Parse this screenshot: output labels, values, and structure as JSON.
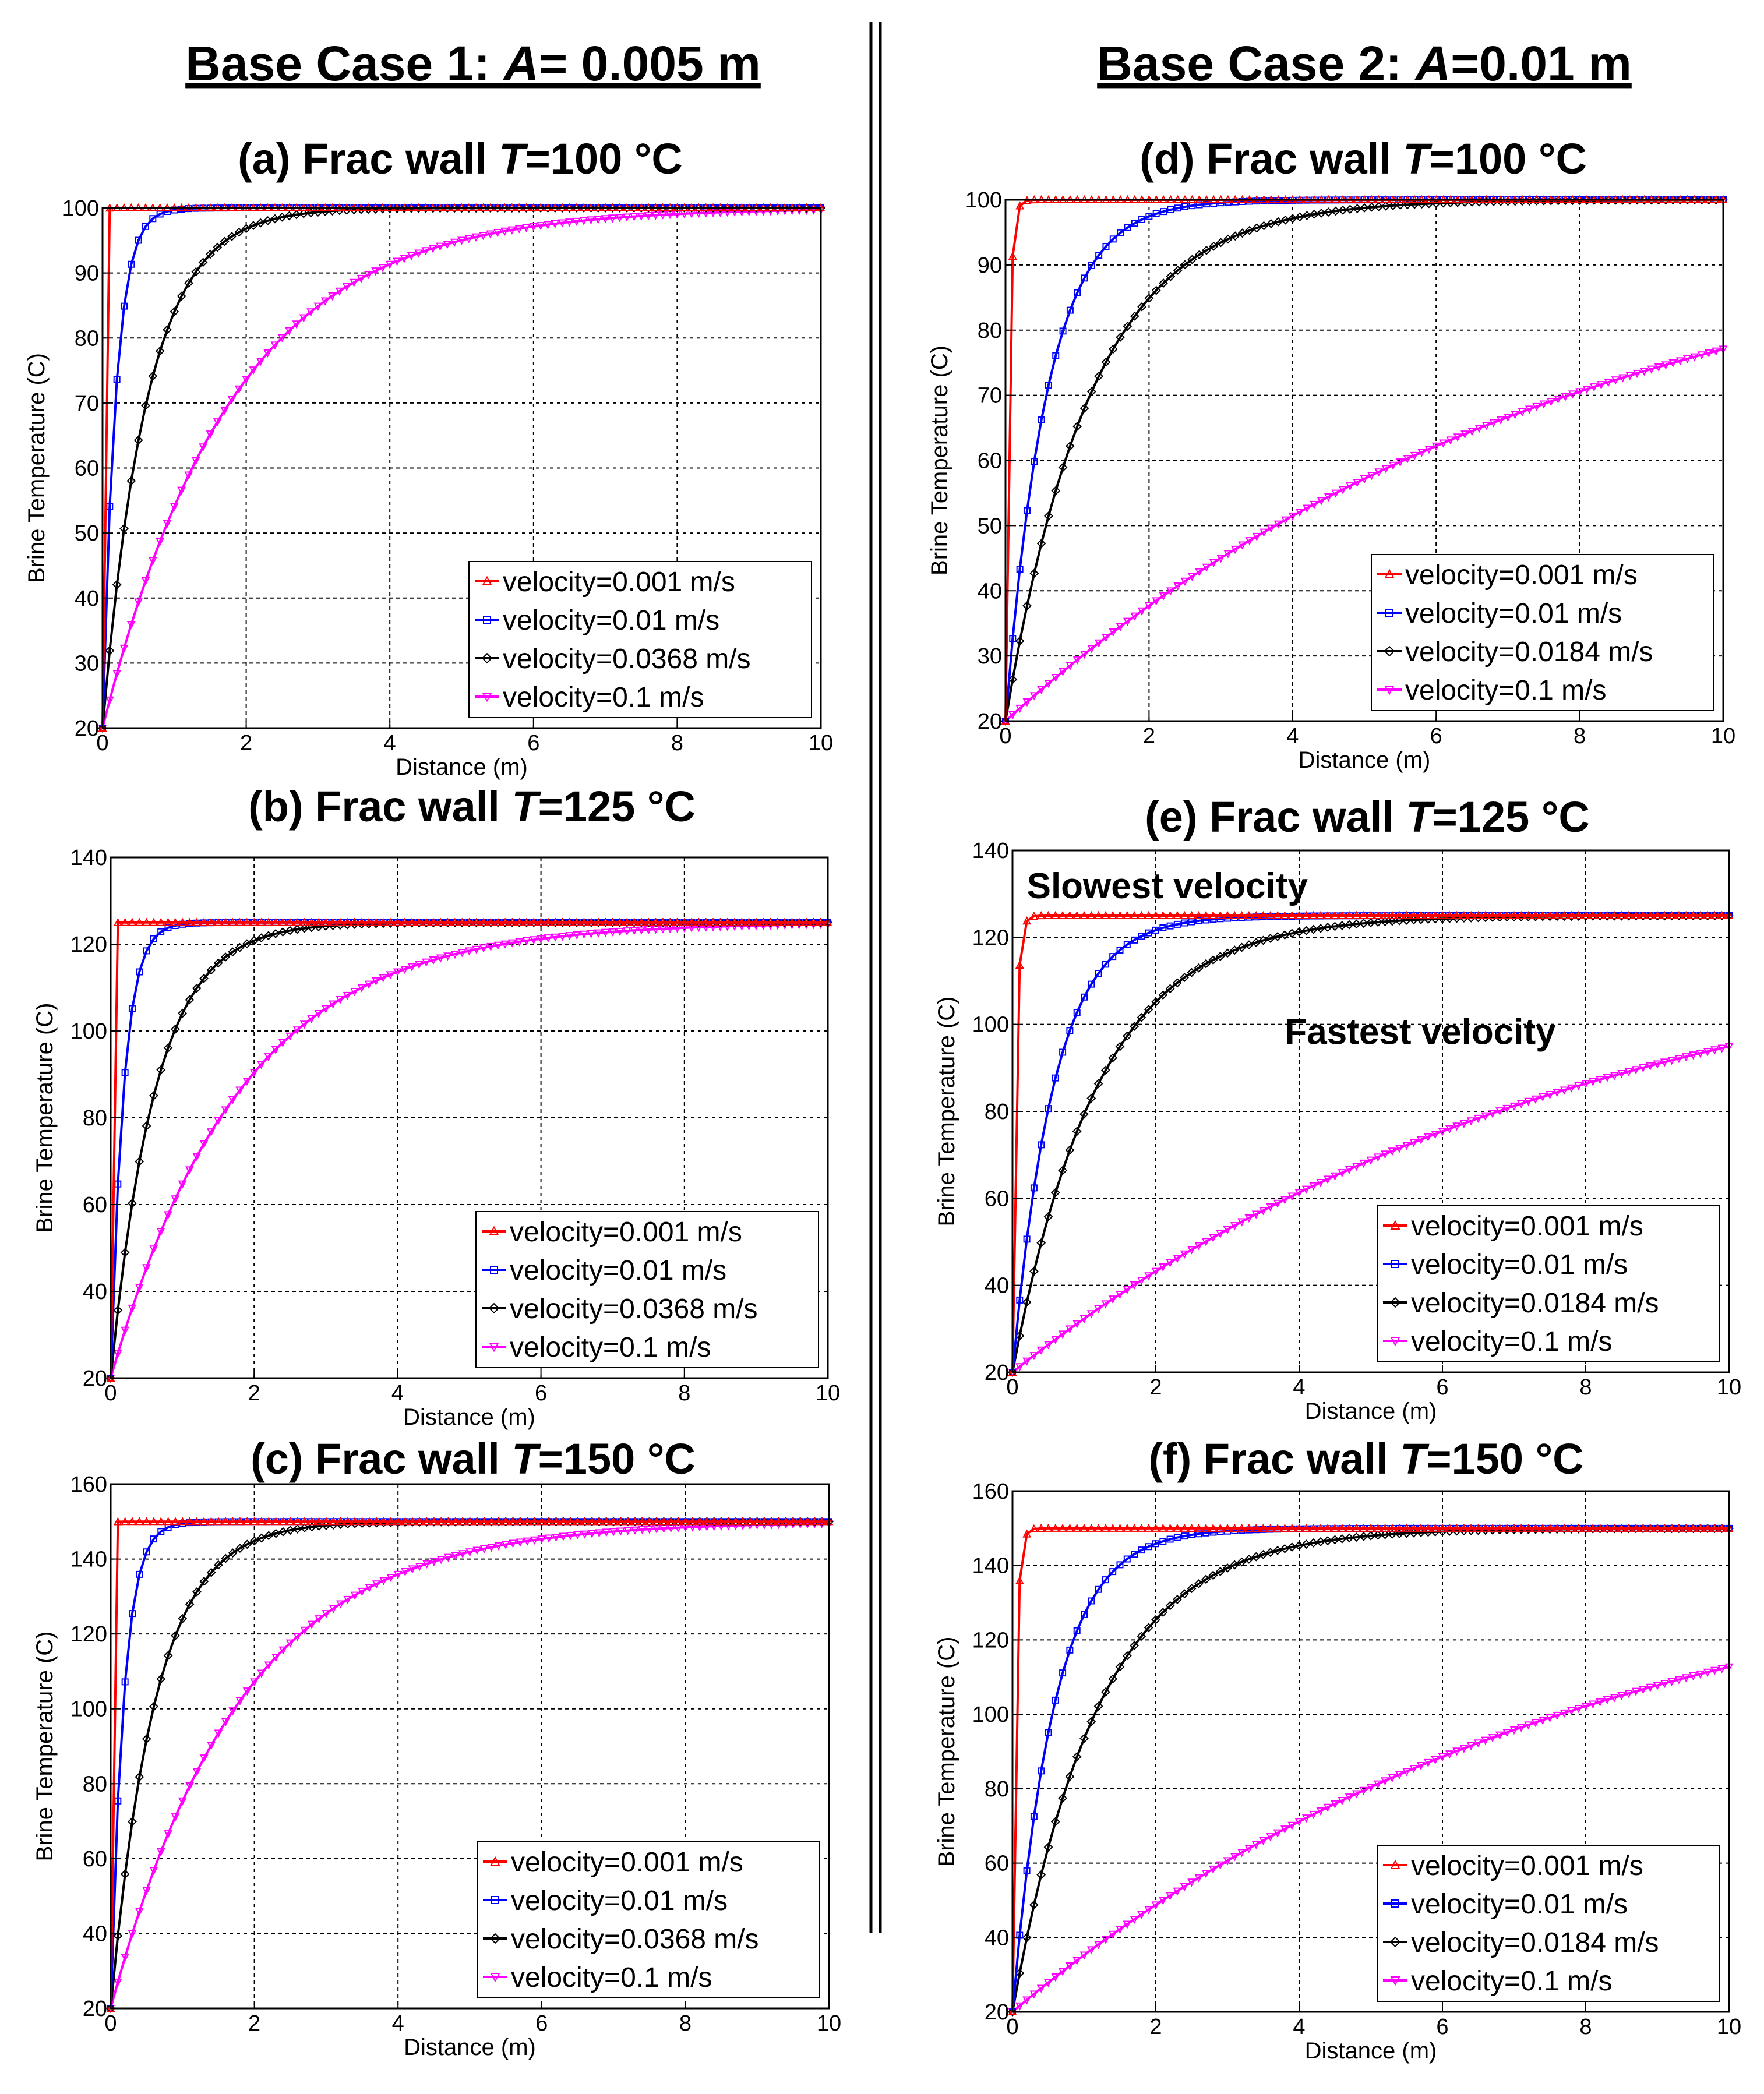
{
  "case_titles": {
    "left": {
      "prefix": "Base Case 1: ",
      "var": "A",
      "suffix": "= 0.005 m"
    },
    "right": {
      "prefix": "Base Case 2: ",
      "var": "A",
      "suffix": "=0.01 m"
    }
  },
  "colors": {
    "v1": "#ff0000",
    "v2": "#0000ff",
    "v3": "#000000",
    "v4": "#ff00ff"
  },
  "chart_data": [
    {
      "id": "a",
      "type": "line",
      "title": {
        "prefix": "(a) Frac wall ",
        "var": "T",
        "suffix": "=100 °C"
      },
      "xlabel": "Distance (m)",
      "ylabel": "Brine Temperature (C)",
      "xlim": [
        0,
        10
      ],
      "ylim": [
        20,
        100
      ],
      "xticks": [
        "0",
        "2",
        "4",
        "6",
        "8",
        "10"
      ],
      "yticks": [
        "20",
        "30",
        "40",
        "50",
        "60",
        "70",
        "80",
        "90",
        "100"
      ],
      "ytick_values": [
        20,
        30,
        40,
        50,
        60,
        70,
        80,
        90,
        100
      ],
      "grid": true,
      "legend_position": "bottom-right",
      "t_wall": 100,
      "t_inlet": 20,
      "series": [
        {
          "name": "velocity=0.001 m/s",
          "color": "#ff0000",
          "marker": "triangle",
          "decay_length_m": 0.012
        },
        {
          "name": "velocity=0.01 m/s",
          "color": "#0000ff",
          "marker": "square",
          "decay_length_m": 0.18
        },
        {
          "name": "velocity=0.0368 m/s",
          "color": "#000000",
          "marker": "diamond",
          "decay_length_m": 0.62
        },
        {
          "name": "velocity=0.1 m/s",
          "color": "#ff00ff",
          "marker": "triangle-down",
          "decay_length_m": 1.8
        }
      ]
    },
    {
      "id": "b",
      "type": "line",
      "title": {
        "prefix": "(b) Frac wall ",
        "var": "T",
        "suffix": "=125 °C"
      },
      "xlabel": "Distance (m)",
      "ylabel": "Brine Temperature (C)",
      "xlim": [
        0,
        10
      ],
      "ylim": [
        20,
        140
      ],
      "xticks": [
        "0",
        "2",
        "4",
        "6",
        "8",
        "10"
      ],
      "yticks": [
        "20",
        "40",
        "60",
        "80",
        "100",
        "120",
        "140"
      ],
      "ytick_values": [
        20,
        40,
        60,
        80,
        100,
        120,
        140
      ],
      "grid": true,
      "legend_position": "bottom-right",
      "t_wall": 125,
      "t_inlet": 20,
      "series": [
        {
          "name": "velocity=0.001 m/s",
          "color": "#ff0000",
          "marker": "triangle",
          "decay_length_m": 0.012
        },
        {
          "name": "velocity=0.01 m/s",
          "color": "#0000ff",
          "marker": "square",
          "decay_length_m": 0.18
        },
        {
          "name": "velocity=0.0368 m/s",
          "color": "#000000",
          "marker": "diamond",
          "decay_length_m": 0.62
        },
        {
          "name": "velocity=0.1 m/s",
          "color": "#ff00ff",
          "marker": "triangle-down",
          "decay_length_m": 1.8
        }
      ]
    },
    {
      "id": "c",
      "type": "line",
      "title": {
        "prefix": "(c) Frac wall ",
        "var": "T",
        "suffix": "=150 °C"
      },
      "xlabel": "Distance (m)",
      "ylabel": "Brine Temperature (C)",
      "xlim": [
        0,
        10
      ],
      "ylim": [
        20,
        160
      ],
      "xticks": [
        "0",
        "2",
        "4",
        "6",
        "8",
        "10"
      ],
      "yticks": [
        "20",
        "40",
        "60",
        "80",
        "100",
        "120",
        "140",
        "160"
      ],
      "ytick_values": [
        20,
        40,
        60,
        80,
        100,
        120,
        140,
        160
      ],
      "grid": true,
      "legend_position": "bottom-right",
      "t_wall": 150,
      "t_inlet": 20,
      "series": [
        {
          "name": "velocity=0.001 m/s",
          "color": "#ff0000",
          "marker": "triangle",
          "decay_length_m": 0.012
        },
        {
          "name": "velocity=0.01 m/s",
          "color": "#0000ff",
          "marker": "square",
          "decay_length_m": 0.18
        },
        {
          "name": "velocity=0.0368 m/s",
          "color": "#000000",
          "marker": "diamond",
          "decay_length_m": 0.62
        },
        {
          "name": "velocity=0.1 m/s",
          "color": "#ff00ff",
          "marker": "triangle-down",
          "decay_length_m": 1.8
        }
      ]
    },
    {
      "id": "d",
      "type": "line",
      "title": {
        "prefix": "(d) Frac wall ",
        "var": "T",
        "suffix": "=100 °C"
      },
      "xlabel": "Distance (m)",
      "ylabel": "Brine Temperature (C)",
      "xlim": [
        0,
        10
      ],
      "ylim": [
        20,
        100
      ],
      "xticks": [
        "0",
        "2",
        "4",
        "6",
        "8",
        "10"
      ],
      "yticks": [
        "20",
        "30",
        "40",
        "50",
        "60",
        "70",
        "80",
        "90",
        "100"
      ],
      "ytick_values": [
        20,
        30,
        40,
        50,
        60,
        70,
        80,
        90,
        100
      ],
      "grid": true,
      "legend_position": "bottom-right",
      "t_wall": 100,
      "t_inlet": 20,
      "series": [
        {
          "name": "velocity=0.001 m/s",
          "color": "#ff0000",
          "marker": "triangle",
          "decay_length_m": 0.045
        },
        {
          "name": "velocity=0.01 m/s",
          "color": "#0000ff",
          "marker": "square",
          "decay_length_m": 0.58
        },
        {
          "name": "velocity=0.0184 m/s",
          "color": "#000000",
          "marker": "diamond",
          "decay_length_m": 1.2
        },
        {
          "name": "velocity=0.1 m/s",
          "color": "#ff00ff",
          "marker": "triangle-down",
          "decay_length_m": 8.0
        }
      ]
    },
    {
      "id": "e",
      "type": "line",
      "title": {
        "prefix": "(e) Frac wall ",
        "var": "T",
        "suffix": "=125 °C"
      },
      "xlabel": "Distance (m)",
      "ylabel": "Brine Temperature (C)",
      "xlim": [
        0,
        10
      ],
      "ylim": [
        20,
        140
      ],
      "xticks": [
        "0",
        "2",
        "4",
        "6",
        "8",
        "10"
      ],
      "yticks": [
        "20",
        "40",
        "60",
        "80",
        "100",
        "120",
        "140"
      ],
      "ytick_values": [
        20,
        40,
        60,
        80,
        100,
        120,
        140
      ],
      "grid": true,
      "legend_position": "bottom-right",
      "t_wall": 125,
      "t_inlet": 20,
      "annotations": [
        {
          "text": "Slowest velocity",
          "x": 0.2,
          "y": 129
        },
        {
          "text": "Fastest velocity",
          "x": 3.8,
          "y": 95.5
        }
      ],
      "series": [
        {
          "name": "velocity=0.001 m/s",
          "color": "#ff0000",
          "marker": "triangle",
          "decay_length_m": 0.045
        },
        {
          "name": "velocity=0.01 m/s",
          "color": "#0000ff",
          "marker": "square",
          "decay_length_m": 0.58
        },
        {
          "name": "velocity=0.0184 m/s",
          "color": "#000000",
          "marker": "diamond",
          "decay_length_m": 1.2
        },
        {
          "name": "velocity=0.1 m/s",
          "color": "#ff00ff",
          "marker": "triangle-down",
          "decay_length_m": 8.0
        }
      ]
    },
    {
      "id": "f",
      "type": "line",
      "title": {
        "prefix": "(f) Frac wall ",
        "var": "T",
        "suffix": "=150 °C"
      },
      "xlabel": "Distance (m)",
      "ylabel": "Brine Temperature (C)",
      "xlim": [
        0,
        10
      ],
      "ylim": [
        20,
        160
      ],
      "xticks": [
        "0",
        "2",
        "4",
        "6",
        "8",
        "10"
      ],
      "yticks": [
        "20",
        "40",
        "60",
        "80",
        "100",
        "120",
        "140",
        "160"
      ],
      "ytick_values": [
        20,
        40,
        60,
        80,
        100,
        120,
        140,
        160
      ],
      "grid": true,
      "legend_position": "bottom-right",
      "t_wall": 150,
      "t_inlet": 20,
      "series": [
        {
          "name": "velocity=0.001 m/s",
          "color": "#ff0000",
          "marker": "triangle",
          "decay_length_m": 0.045
        },
        {
          "name": "velocity=0.01 m/s",
          "color": "#0000ff",
          "marker": "square",
          "decay_length_m": 0.58
        },
        {
          "name": "velocity=0.0184 m/s",
          "color": "#000000",
          "marker": "diamond",
          "decay_length_m": 1.2
        },
        {
          "name": "velocity=0.1 m/s",
          "color": "#ff00ff",
          "marker": "triangle-down",
          "decay_length_m": 8.0
        }
      ]
    }
  ]
}
